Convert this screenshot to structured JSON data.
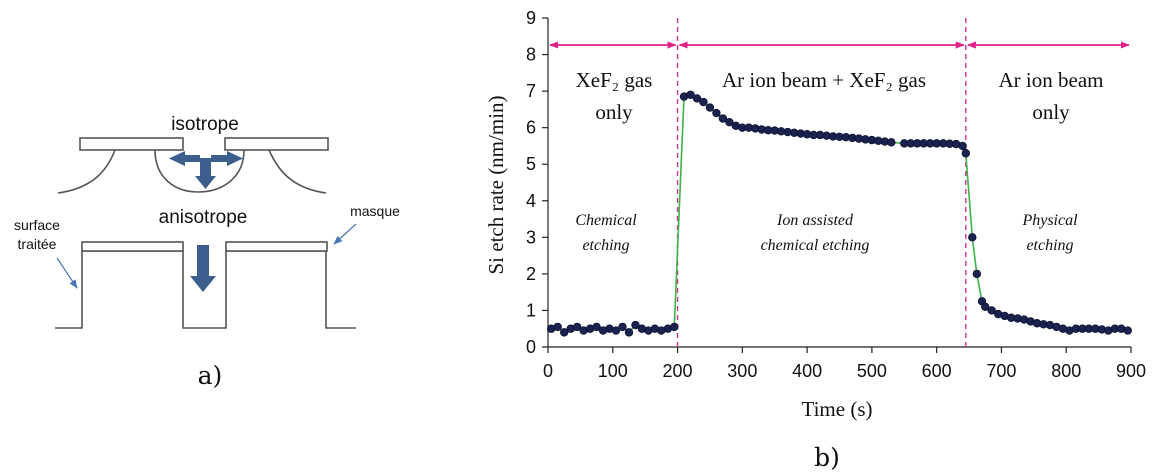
{
  "panel_a": {
    "label": "a)",
    "isotrope": "isotrope",
    "anisotrope": "anisotrope",
    "surface_line1": "surface",
    "surface_line2": "traitée",
    "masque": "masque"
  },
  "panel_b": {
    "label": "b)",
    "regions": [
      {
        "title_line1": "XeF₂ gas",
        "title_line2": "only",
        "desc_line1": "Chemical",
        "desc_line2": "etching"
      },
      {
        "title_line1": "Ar ion beam + XeF₂ gas",
        "title_line2": "",
        "desc_line1": "Ion assisted",
        "desc_line2": "chemical etching"
      },
      {
        "title_line1": "Ar  ion beam",
        "title_line2": "only",
        "desc_line1": "Physical",
        "desc_line2": "etching"
      }
    ]
  },
  "colors": {
    "data_marker": "#1a2350",
    "line": "#3cb34a",
    "divider": "#d6338f",
    "arrow": "#e0218a",
    "diagram_arrow": "#3d5f8e"
  },
  "chart_data": {
    "type": "scatter",
    "title": "",
    "xlabel": "Time (s)",
    "ylabel": "Si etch rate (nm/min)",
    "xlim": [
      0,
      900
    ],
    "ylim": [
      0,
      9
    ],
    "xticks": [
      0,
      100,
      200,
      300,
      400,
      500,
      600,
      700,
      800,
      900
    ],
    "yticks": [
      0,
      1,
      2,
      3,
      4,
      5,
      6,
      7,
      8,
      9
    ],
    "grid": false,
    "legend": "none",
    "dividers_x": [
      200,
      645
    ],
    "series": [
      {
        "x": [
          5,
          15,
          25,
          35,
          45,
          55,
          65,
          75,
          85,
          95,
          105,
          115,
          125,
          135,
          145,
          155,
          165,
          175,
          185,
          195,
          210,
          220,
          230,
          240,
          250,
          260,
          270,
          280,
          290,
          300,
          310,
          320,
          330,
          340,
          350,
          360,
          370,
          380,
          390,
          400,
          410,
          420,
          430,
          440,
          450,
          460,
          470,
          480,
          490,
          500,
          510,
          520,
          530,
          550,
          560,
          570,
          580,
          590,
          600,
          610,
          620,
          630,
          640,
          645,
          655,
          662,
          670,
          675,
          685,
          695,
          705,
          715,
          725,
          735,
          745,
          755,
          765,
          775,
          785,
          795,
          805,
          815,
          825,
          835,
          845,
          855,
          865,
          875,
          885,
          895
        ],
        "y": [
          0.5,
          0.55,
          0.4,
          0.5,
          0.55,
          0.45,
          0.5,
          0.55,
          0.45,
          0.5,
          0.45,
          0.55,
          0.4,
          0.6,
          0.5,
          0.45,
          0.5,
          0.45,
          0.5,
          0.55,
          6.85,
          6.9,
          6.8,
          6.7,
          6.55,
          6.4,
          6.25,
          6.15,
          6.05,
          6.0,
          6.0,
          5.98,
          5.95,
          5.93,
          5.92,
          5.9,
          5.88,
          5.86,
          5.84,
          5.82,
          5.8,
          5.8,
          5.78,
          5.76,
          5.75,
          5.74,
          5.72,
          5.7,
          5.68,
          5.66,
          5.64,
          5.62,
          5.6,
          5.57,
          5.57,
          5.57,
          5.57,
          5.57,
          5.57,
          5.57,
          5.56,
          5.55,
          5.5,
          5.3,
          3.0,
          2.0,
          1.25,
          1.1,
          1.0,
          0.9,
          0.85,
          0.8,
          0.78,
          0.75,
          0.7,
          0.65,
          0.62,
          0.6,
          0.55,
          0.5,
          0.45,
          0.5,
          0.5,
          0.5,
          0.5,
          0.48,
          0.45,
          0.5,
          0.5,
          0.45
        ]
      }
    ]
  }
}
